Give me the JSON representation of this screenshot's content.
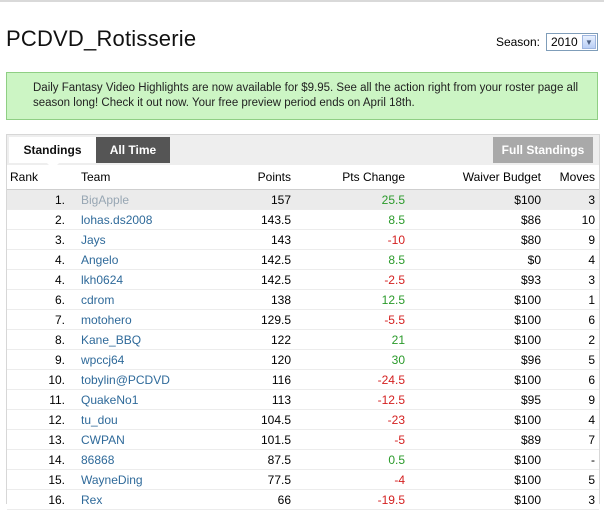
{
  "header": {
    "title": "PCDVD_Rotisserie",
    "season_label": "Season:",
    "season_value": "2010"
  },
  "promo": {
    "text": "Daily Fantasy Video Highlights are now available for $9.95. See all the action right from your roster page all season long! Check it out now. Your free preview period ends on April 18th."
  },
  "tabs": {
    "standings": "Standings",
    "all_time": "All Time",
    "full_standings": "Full Standings"
  },
  "table": {
    "headers": {
      "rank": "Rank",
      "team": "Team",
      "points": "Points",
      "pts_change": "Pts Change",
      "waiver_budget": "Waiver Budget",
      "moves": "Moves"
    },
    "rows": [
      {
        "rank": "1.",
        "team": "BigApple",
        "points": "157",
        "change": "25.5",
        "waiver": "$100",
        "moves": "3"
      },
      {
        "rank": "2.",
        "team": "lohas.ds2008",
        "points": "143.5",
        "change": "8.5",
        "waiver": "$86",
        "moves": "10"
      },
      {
        "rank": "3.",
        "team": "Jays",
        "points": "143",
        "change": "-10",
        "waiver": "$80",
        "moves": "9"
      },
      {
        "rank": "4.",
        "team": "Angelo",
        "points": "142.5",
        "change": "8.5",
        "waiver": "$0",
        "moves": "4"
      },
      {
        "rank": "4.",
        "team": "lkh0624",
        "points": "142.5",
        "change": "-2.5",
        "waiver": "$93",
        "moves": "3"
      },
      {
        "rank": "6.",
        "team": "cdrom",
        "points": "138",
        "change": "12.5",
        "waiver": "$100",
        "moves": "1"
      },
      {
        "rank": "7.",
        "team": "motohero",
        "points": "129.5",
        "change": "-5.5",
        "waiver": "$100",
        "moves": "6"
      },
      {
        "rank": "8.",
        "team": "Kane_BBQ",
        "points": "122",
        "change": "21",
        "waiver": "$100",
        "moves": "2"
      },
      {
        "rank": "9.",
        "team": "wpccj64",
        "points": "120",
        "change": "30",
        "waiver": "$96",
        "moves": "5"
      },
      {
        "rank": "10.",
        "team": "tobylin@PCDVD",
        "points": "116",
        "change": "-24.5",
        "waiver": "$100",
        "moves": "6"
      },
      {
        "rank": "11.",
        "team": "QuakeNo1",
        "points": "113",
        "change": "-12.5",
        "waiver": "$95",
        "moves": "9"
      },
      {
        "rank": "12.",
        "team": "tu_dou",
        "points": "104.5",
        "change": "-23",
        "waiver": "$100",
        "moves": "4"
      },
      {
        "rank": "13.",
        "team": "CWPAN",
        "points": "101.5",
        "change": "-5",
        "waiver": "$89",
        "moves": "7"
      },
      {
        "rank": "14.",
        "team": "86868",
        "points": "87.5",
        "change": "0.5",
        "waiver": "$100",
        "moves": "-"
      },
      {
        "rank": "15.",
        "team": "WayneDing",
        "points": "77.5",
        "change": "-4",
        "waiver": "$100",
        "moves": "5"
      },
      {
        "rank": "16.",
        "team": "Rex",
        "points": "66",
        "change": "-19.5",
        "waiver": "$100",
        "moves": "3"
      }
    ]
  },
  "colors": {
    "positive": "#2a9a2a",
    "negative": "#d42020",
    "team_link": "#2f6a9a",
    "promo_bg": "#ccf5c4"
  }
}
